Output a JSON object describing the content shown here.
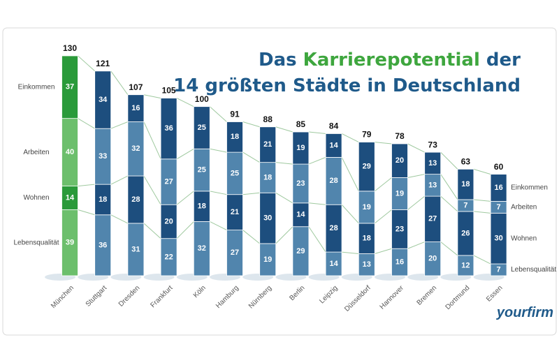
{
  "chart_data": {
    "type": "stacked-bar",
    "title": {
      "line1": [
        "Das",
        "Karrierepotential",
        "der"
      ],
      "line2": "14 größten Städte in Deutschland"
    },
    "categories": [
      "München",
      "Stuttgart",
      "Dresden",
      "Frankfurt",
      "Köln",
      "Hamburg",
      "Nürnberg",
      "Berlin",
      "Leipzig",
      "Düsseldorf",
      "Hannover",
      "Bremen",
      "Dortmund",
      "Essen"
    ],
    "series": [
      {
        "name": "Lebensqualität",
        "color": "#5185ad",
        "highlight_color": "#6cbf6c",
        "values": [
          39,
          36,
          31,
          22,
          32,
          27,
          19,
          29,
          14,
          13,
          16,
          20,
          12,
          7
        ]
      },
      {
        "name": "Wohnen",
        "color": "#1d4e7e",
        "highlight_color": "#2a9a3a",
        "values": [
          14,
          18,
          28,
          20,
          18,
          21,
          30,
          14,
          28,
          18,
          23,
          27,
          26,
          30
        ]
      },
      {
        "name": "Arbeiten",
        "color": "#5185ad",
        "highlight_color": "#6cbf6c",
        "values": [
          40,
          33,
          32,
          27,
          25,
          25,
          18,
          23,
          28,
          19,
          19,
          13,
          7,
          7
        ]
      },
      {
        "name": "Einkommen",
        "color": "#1d4e7e",
        "highlight_color": "#2a9a3a",
        "values": [
          37,
          34,
          16,
          36,
          25,
          18,
          21,
          19,
          14,
          29,
          20,
          13,
          18,
          16
        ]
      }
    ],
    "totals": [
      130,
      121,
      107,
      105,
      100,
      91,
      88,
      85,
      84,
      79,
      78,
      73,
      63,
      60
    ],
    "highlight_index": 0,
    "ylim": [
      0,
      130
    ],
    "connector_color": "#9fc99f",
    "logo": "yourfirm"
  }
}
